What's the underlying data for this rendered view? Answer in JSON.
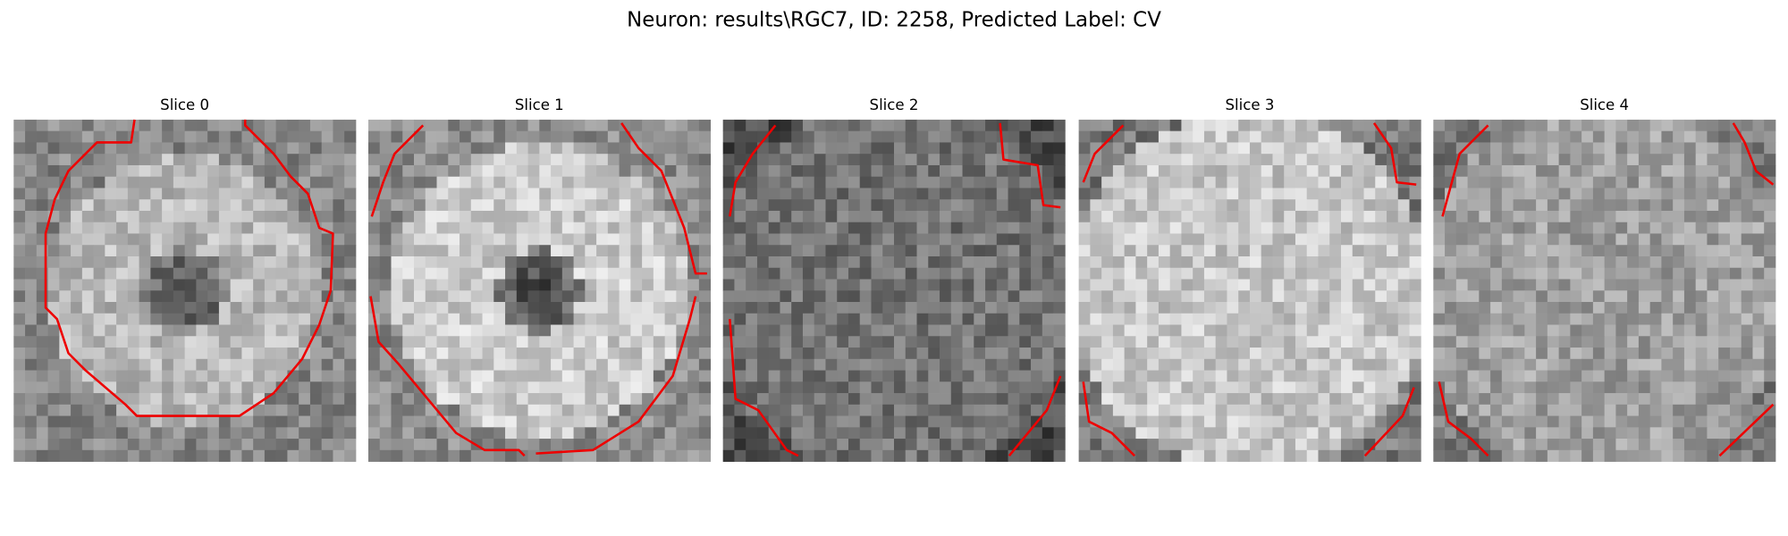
{
  "title": "Neuron: results\\RGC7, ID: 2258, Predicted Label: CV",
  "panels": [
    {
      "title": "Slice 0"
    },
    {
      "title": "Slice 1"
    },
    {
      "title": "Slice 2"
    },
    {
      "title": "Slice 3"
    },
    {
      "title": "Slice 4"
    }
  ]
}
